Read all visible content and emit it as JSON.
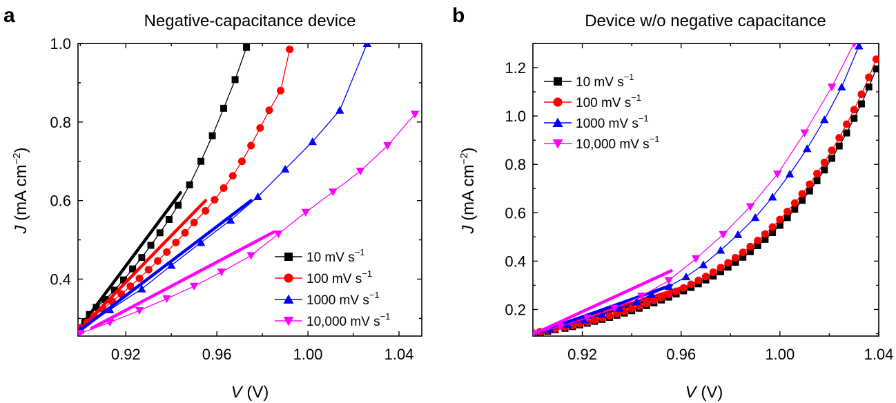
{
  "chart_data": [
    {
      "panel": "a",
      "type": "line",
      "title": "Negative-capacitance device",
      "xlabel": {
        "var": "V",
        "unit": " (V)"
      },
      "ylabel": {
        "var": "J",
        "unit": " (mA cm",
        "sup": "−2",
        "close": ")"
      },
      "xlim": [
        0.899,
        1.05
      ],
      "ylim": [
        0.255,
        1.0
      ],
      "xticks": [
        0.92,
        0.96,
        1.0,
        1.04
      ],
      "xtick_labels": [
        "0.92",
        "0.96",
        "1.00",
        "1.04"
      ],
      "yticks": [
        0.4,
        0.6,
        0.8,
        1.0
      ],
      "ytick_labels": [
        "0.4",
        "0.6",
        "0.8",
        "1.0"
      ],
      "legend_position": "lower-right",
      "series": [
        {
          "name": "10 mV s",
          "sup": "−1",
          "color": "#000000",
          "marker": "square",
          "x": [
            0.9,
            0.902,
            0.904,
            0.907,
            0.911,
            0.915,
            0.919,
            0.923,
            0.927,
            0.931,
            0.935,
            0.939,
            0.943,
            0.948,
            0.953,
            0.958,
            0.963,
            0.968,
            0.973
          ],
          "y": [
            0.275,
            0.292,
            0.31,
            0.328,
            0.348,
            0.372,
            0.398,
            0.426,
            0.455,
            0.486,
            0.518,
            0.552,
            0.588,
            0.64,
            0.7,
            0.765,
            0.835,
            0.908,
            0.99
          ],
          "fit": {
            "x": [
              0.9,
              0.944
            ],
            "y": [
              0.278,
              0.62
            ]
          }
        },
        {
          "name": "100 mV s",
          "sup": "−1",
          "color": "#ff0000",
          "marker": "circle",
          "x": [
            0.9,
            0.903,
            0.906,
            0.91,
            0.914,
            0.918,
            0.922,
            0.926,
            0.93,
            0.934,
            0.938,
            0.942,
            0.946,
            0.95,
            0.955,
            0.959,
            0.963,
            0.967,
            0.971,
            0.975,
            0.979,
            0.983,
            0.988,
            0.992
          ],
          "y": [
            0.276,
            0.29,
            0.306,
            0.324,
            0.343,
            0.362,
            0.382,
            0.402,
            0.424,
            0.446,
            0.469,
            0.493,
            0.518,
            0.544,
            0.574,
            0.602,
            0.632,
            0.663,
            0.7,
            0.74,
            0.785,
            0.83,
            0.88,
            0.985
          ],
          "fit": {
            "x": [
              0.902,
              0.955
            ],
            "y": [
              0.285,
              0.6
            ]
          }
        },
        {
          "name": "1000 mV s",
          "sup": "−1",
          "color": "#0000ff",
          "marker": "triangle-up",
          "x": [
            0.9,
            0.913,
            0.927,
            0.94,
            0.953,
            0.966,
            0.978,
            0.99,
            1.002,
            1.014,
            1.026
          ],
          "y": [
            0.27,
            0.322,
            0.375,
            0.435,
            0.493,
            0.55,
            0.61,
            0.68,
            0.75,
            0.83,
            1.0
          ],
          "fit": {
            "x": [
              0.9,
              0.975
            ],
            "y": [
              0.27,
              0.6
            ]
          }
        },
        {
          "name": "10,000 mV s",
          "sup": "−1",
          "color": "#ff00ff",
          "marker": "triangle-down",
          "x": [
            0.9,
            0.913,
            0.926,
            0.938,
            0.95,
            0.962,
            0.975,
            0.987,
            0.999,
            1.011,
            1.023,
            1.035,
            1.047
          ],
          "y": [
            0.262,
            0.29,
            0.32,
            0.35,
            0.382,
            0.418,
            0.46,
            0.515,
            0.57,
            0.622,
            0.675,
            0.74,
            0.82
          ],
          "fit": {
            "x": [
              0.905,
              0.985
            ],
            "y": [
              0.275,
              0.52
            ]
          }
        }
      ]
    },
    {
      "panel": "b",
      "type": "line",
      "title": "Device w/o negative capacitance",
      "xlabel": {
        "var": "V",
        "unit": " (V)"
      },
      "ylabel": {
        "var": "J",
        "unit": " (mA cm",
        "sup": "−2",
        "close": ")"
      },
      "xlim": [
        0.9,
        1.04
      ],
      "ylim": [
        0.09,
        1.3
      ],
      "xticks": [
        0.92,
        0.96,
        1.0,
        1.04
      ],
      "xtick_labels": [
        "0.92",
        "0.96",
        "1.00",
        "1.04"
      ],
      "yticks": [
        0.2,
        0.4,
        0.6,
        0.8,
        1.0,
        1.2
      ],
      "ytick_labels": [
        "0.2",
        "0.4",
        "0.6",
        "0.8",
        "1.0",
        "1.2"
      ],
      "legend_position": "upper-left",
      "series": [
        {
          "name": "10 mV s",
          "sup": "−1",
          "color": "#000000",
          "marker": "square",
          "x": [
            0.9,
            0.903,
            0.906,
            0.909,
            0.913,
            0.916,
            0.919,
            0.922,
            0.925,
            0.928,
            0.931,
            0.934,
            0.937,
            0.94,
            0.943,
            0.946,
            0.949,
            0.952,
            0.955,
            0.958,
            0.961,
            0.964,
            0.967,
            0.97,
            0.973,
            0.976,
            0.979,
            0.982,
            0.985,
            0.988,
            0.991,
            0.994,
            0.997,
            1.0,
            1.003,
            1.006,
            1.009,
            1.012,
            1.015,
            1.018,
            1.021,
            1.024,
            1.027,
            1.03,
            1.033,
            1.036,
            1.039
          ],
          "y": [
            0.1,
            0.105,
            0.11,
            0.116,
            0.122,
            0.129,
            0.136,
            0.143,
            0.151,
            0.159,
            0.167,
            0.176,
            0.185,
            0.195,
            0.205,
            0.216,
            0.227,
            0.239,
            0.251,
            0.264,
            0.277,
            0.291,
            0.306,
            0.322,
            0.338,
            0.356,
            0.375,
            0.395,
            0.416,
            0.439,
            0.464,
            0.49,
            0.518,
            0.548,
            0.58,
            0.614,
            0.651,
            0.69,
            0.732,
            0.777,
            0.825,
            0.876,
            0.93,
            0.99,
            1.05,
            1.12,
            1.195
          ],
          "fit": {
            "x": [
              0.9,
              0.962
            ],
            "y": [
              0.097,
              0.285
            ]
          }
        },
        {
          "name": "100 mV s",
          "sup": "−1",
          "color": "#ff0000",
          "marker": "circle",
          "x": [
            0.9,
            0.903,
            0.906,
            0.909,
            0.913,
            0.916,
            0.919,
            0.922,
            0.925,
            0.928,
            0.931,
            0.934,
            0.937,
            0.94,
            0.943,
            0.946,
            0.949,
            0.952,
            0.955,
            0.958,
            0.961,
            0.964,
            0.967,
            0.97,
            0.973,
            0.976,
            0.979,
            0.982,
            0.985,
            0.988,
            0.991,
            0.994,
            0.997,
            1.0,
            1.003,
            1.006,
            1.009,
            1.012,
            1.015,
            1.018,
            1.021,
            1.024,
            1.027,
            1.03,
            1.033,
            1.036,
            1.039
          ],
          "y": [
            0.103,
            0.108,
            0.114,
            0.12,
            0.127,
            0.134,
            0.141,
            0.149,
            0.157,
            0.165,
            0.174,
            0.183,
            0.193,
            0.203,
            0.214,
            0.225,
            0.237,
            0.249,
            0.262,
            0.275,
            0.289,
            0.304,
            0.32,
            0.336,
            0.354,
            0.373,
            0.393,
            0.414,
            0.436,
            0.46,
            0.485,
            0.512,
            0.541,
            0.572,
            0.605,
            0.64,
            0.678,
            0.718,
            0.762,
            0.808,
            0.858,
            0.91,
            0.966,
            1.026,
            1.09,
            1.16,
            1.235
          ],
          "fit": {
            "x": [
              0.9,
              0.962
            ],
            "y": [
              0.1,
              0.295
            ]
          }
        },
        {
          "name": "1000 mV s",
          "sup": "−1",
          "color": "#0000ff",
          "marker": "triangle-up",
          "x": [
            0.9,
            0.907,
            0.914,
            0.921,
            0.928,
            0.935,
            0.942,
            0.948,
            0.955,
            0.962,
            0.969,
            0.976,
            0.983,
            0.99,
            0.997,
            1.004,
            1.011,
            1.018,
            1.025,
            1.032
          ],
          "y": [
            0.1,
            0.118,
            0.137,
            0.157,
            0.18,
            0.205,
            0.232,
            0.262,
            0.295,
            0.335,
            0.385,
            0.445,
            0.51,
            0.58,
            0.665,
            0.76,
            0.865,
            0.985,
            1.12,
            1.29
          ],
          "fit": {
            "x": [
              0.9,
              0.956
            ],
            "y": [
              0.097,
              0.3
            ]
          }
        },
        {
          "name": "10,000 mV s",
          "sup": "−1",
          "color": "#ff00ff",
          "marker": "triangle-down",
          "x": [
            0.9,
            0.911,
            0.922,
            0.933,
            0.944,
            0.955,
            0.966,
            0.977,
            0.988,
            0.999,
            1.01,
            1.021,
            1.03
          ],
          "y": [
            0.1,
            0.13,
            0.165,
            0.205,
            0.255,
            0.32,
            0.41,
            0.51,
            0.625,
            0.76,
            0.93,
            1.12,
            1.3
          ],
          "fit": {
            "x": [
              0.9,
              0.956
            ],
            "y": [
              0.097,
              0.36
            ]
          }
        }
      ]
    }
  ]
}
